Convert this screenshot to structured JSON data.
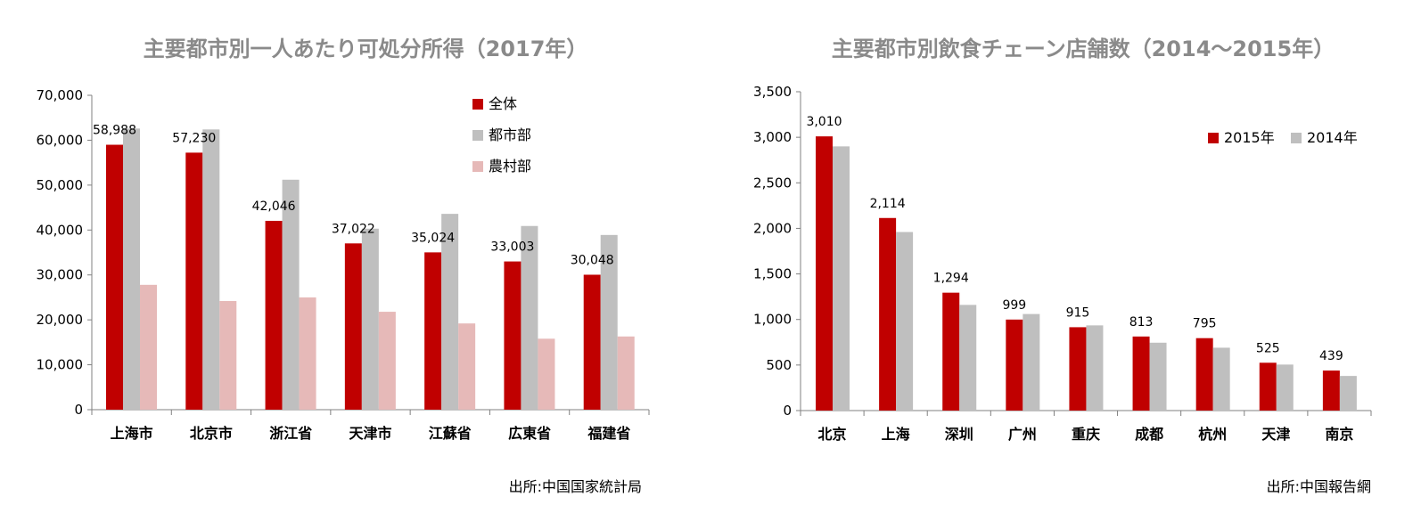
{
  "chart_data": [
    {
      "type": "bar",
      "title": "主要都市別一人あたり可処分所得（2017年）",
      "categories": [
        "上海市",
        "北京市",
        "浙江省",
        "天津市",
        "江蘇省",
        "広東省",
        "福建省"
      ],
      "series": [
        {
          "name": "全体",
          "color": "#c00000",
          "values": [
            58988,
            57230,
            42046,
            37022,
            35024,
            33003,
            30048
          ]
        },
        {
          "name": "都市部",
          "color": "#bfbfbf",
          "values": [
            62600,
            62400,
            51200,
            40300,
            43600,
            40900,
            38900
          ]
        },
        {
          "name": "農村部",
          "color": "#e6b9b8",
          "values": [
            27800,
            24200,
            25000,
            21800,
            19200,
            15800,
            16300
          ]
        }
      ],
      "data_labels": [
        "58,988",
        "57,230",
        "42,046",
        "37,022",
        "35,024",
        "33,003",
        "30,048"
      ],
      "ylim": [
        0,
        70000
      ],
      "yticks": [
        "0",
        "10,000",
        "20,000",
        "30,000",
        "40,000",
        "50,000",
        "60,000",
        "70,000"
      ],
      "legend_position": "top-right",
      "source": "出所:中国国家統計局"
    },
    {
      "type": "bar",
      "title": "主要都市別飲食チェーン店舗数（2014～2015年）",
      "categories": [
        "北京",
        "上海",
        "深圳",
        "广州",
        "重庆",
        "成都",
        "杭州",
        "天津",
        "南京"
      ],
      "series": [
        {
          "name": "2015年",
          "color": "#c00000",
          "values": [
            3010,
            2114,
            1294,
            999,
            915,
            813,
            795,
            525,
            439
          ]
        },
        {
          "name": "2014年",
          "color": "#bfbfbf",
          "values": [
            2900,
            1960,
            1160,
            1060,
            935,
            745,
            690,
            505,
            380
          ]
        }
      ],
      "data_labels": [
        "3,010",
        "2,114",
        "1,294",
        "999",
        "915",
        "813",
        "795",
        "525",
        "439"
      ],
      "ylim": [
        0,
        3500
      ],
      "yticks": [
        "0",
        "500",
        "1,000",
        "1,500",
        "2,000",
        "2,500",
        "3,000",
        "3,500"
      ],
      "legend_position": "top-right",
      "source": "出所:中国報告網"
    }
  ]
}
